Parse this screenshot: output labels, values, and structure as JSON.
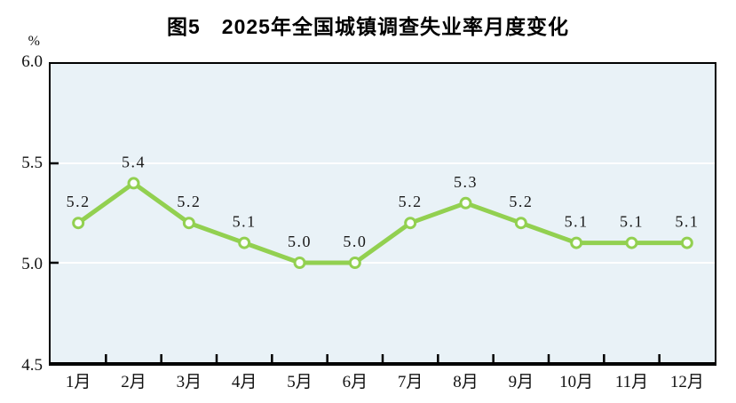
{
  "title": "图5　2025年全国城镇调查失业率月度变化",
  "colors": {
    "line": "#92d050",
    "marker_fill": "#fafdfd",
    "plot_bg": "#e9f2f7",
    "gridline": "#ffffff",
    "axis": "#000000",
    "text": "#1a1a1a"
  },
  "chart_data": {
    "type": "line",
    "title": "图5　2025年全国城镇调查失业率月度变化",
    "categories": [
      "1月",
      "2月",
      "3月",
      "4月",
      "5月",
      "6月",
      "7月",
      "8月",
      "9月",
      "10月",
      "11月",
      "12月"
    ],
    "values": [
      5.2,
      5.4,
      5.2,
      5.1,
      5.0,
      5.0,
      5.2,
      5.3,
      5.2,
      5.1,
      5.1,
      5.1
    ],
    "xlabel": "",
    "ylabel": "%",
    "ylim": [
      4.5,
      6.0
    ],
    "yticks": [
      6.0,
      5.5,
      5.0,
      4.5
    ],
    "gridlines_at": [
      5.5,
      5.0
    ],
    "legend": "none",
    "data_labels": true,
    "marker": "open-circle"
  }
}
